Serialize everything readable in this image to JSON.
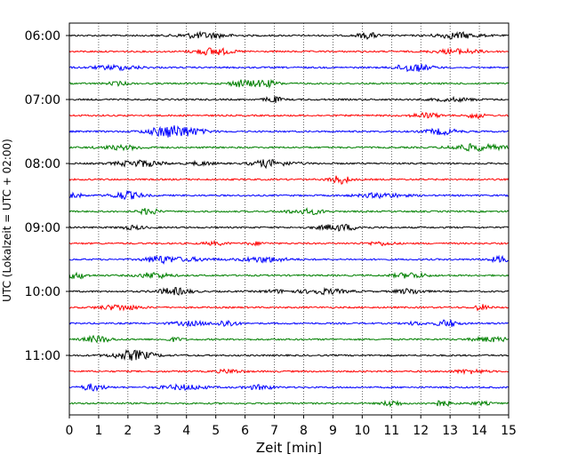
{
  "chart_data": {
    "type": "line",
    "title": "",
    "xlabel": "Zeit  [min]",
    "ylabel": "UTC (Lokalzeit = UTC + 02:00)",
    "xlim": [
      0,
      15
    ],
    "x_ticks": [
      0,
      1,
      2,
      3,
      4,
      5,
      6,
      7,
      8,
      9,
      10,
      11,
      12,
      13,
      14,
      15
    ],
    "x_tick_labels": [
      "0",
      "1",
      "2",
      "3",
      "4",
      "5",
      "6",
      "7",
      "8",
      "9",
      "10",
      "11",
      "12",
      "13",
      "14",
      "15"
    ],
    "y_tick_labels": [
      "06:00",
      "07:00",
      "08:00",
      "09:00",
      "10:00",
      "11:00"
    ],
    "vertical_gridlines": true,
    "legend": "none",
    "trace_colors": [
      "#000000",
      "#ff0000",
      "#0000ff",
      "#008000"
    ],
    "trace_start_times_utc": [
      "06:00",
      "06:15",
      "06:30",
      "06:45",
      "07:00",
      "07:15",
      "07:30",
      "07:45",
      "08:00",
      "08:15",
      "08:30",
      "08:45",
      "09:00",
      "09:15",
      "09:30",
      "09:45",
      "10:00",
      "10:15",
      "10:30",
      "10:45",
      "11:00",
      "11:15",
      "11:30",
      "11:45"
    ],
    "trace_duration_min": 15
  }
}
